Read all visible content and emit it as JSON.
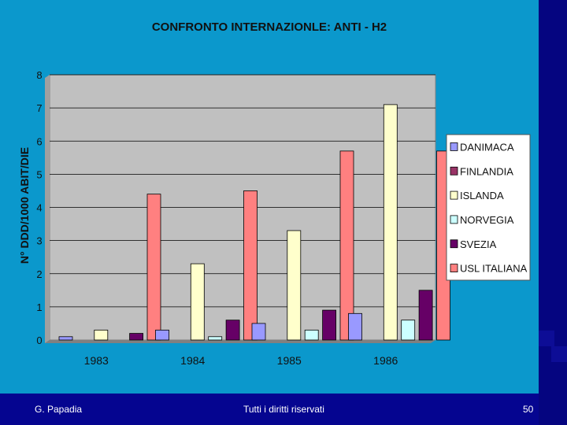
{
  "chart_data": {
    "type": "bar",
    "title": "CONFRONTO INTERNAZIONLE: ANTI - H2",
    "xlabel": "",
    "ylabel": "N° DDD/1000 ABIT/DIE",
    "ylim": [
      0,
      8
    ],
    "yticks": [
      0,
      1,
      2,
      3,
      4,
      5,
      6,
      7,
      8
    ],
    "grid": true,
    "legend_position": "right",
    "categories": [
      "1983",
      "1984",
      "1985",
      "1986"
    ],
    "series": [
      {
        "name": "DANIMACA",
        "color": "#9999ff",
        "values": [
          0.1,
          0.3,
          0.5,
          0.8
        ]
      },
      {
        "name": "FINLANDIA",
        "color": "#993366",
        "values": [
          0,
          0,
          0,
          0
        ]
      },
      {
        "name": "ISLANDA",
        "color": "#ffffcc",
        "values": [
          0.3,
          2.3,
          3.3,
          7.1
        ]
      },
      {
        "name": "NORVEGIA",
        "color": "#ccffff",
        "values": [
          0,
          0.1,
          0.3,
          0.6
        ]
      },
      {
        "name": "SVEZIA",
        "color": "#660066",
        "values": [
          0.2,
          0.6,
          0.9,
          1.5
        ]
      },
      {
        "name": "USL ITALIANA",
        "color": "#ff8080",
        "values": [
          4.4,
          4.5,
          5.7,
          5.7
        ]
      }
    ]
  },
  "footer": {
    "author": "G. Papadia",
    "rights": "Tutti i diritti riservati",
    "page": "50"
  },
  "colors": {
    "slide_background": "#0b98cc",
    "outer_background": "#0a0a8c",
    "plot_area": "#c0c0c0"
  }
}
